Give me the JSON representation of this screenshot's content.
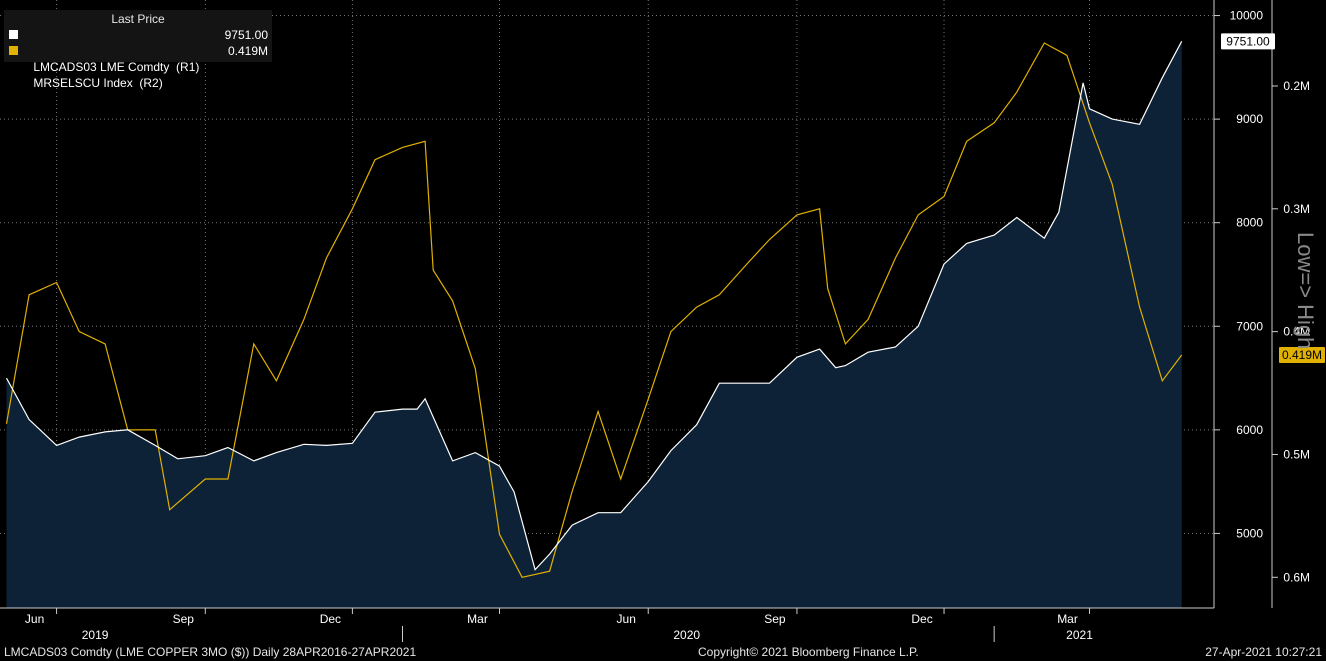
{
  "legend": {
    "header": "Last Price",
    "series": [
      {
        "label": "LMCADS03 LME Comdty  (R1)",
        "value": "9751.00",
        "color": "#ffffff"
      },
      {
        "label": "MRSELSCU Index  (R2)",
        "value": "0.419M",
        "color": "#e0b100"
      }
    ]
  },
  "footer": {
    "left": "LMCADS03 Comdty (LME COPPER    3MO ($))  Daily 28APR2016-27APR2021",
    "center": "Copyright© 2021 Bloomberg Finance L.P.",
    "right": "27-Apr-2021 10:27:21"
  },
  "side_label": "Low=> High",
  "chart_data": {
    "type": "line",
    "x_month_labels": [
      "Jun",
      "Sep",
      "Dec",
      "Mar",
      "Jun",
      "Sep",
      "Dec",
      "Mar"
    ],
    "x_month_dates": [
      "2019-06-01",
      "2019-09-01",
      "2019-12-01",
      "2020-03-01",
      "2020-06-01",
      "2020-09-01",
      "2020-12-01",
      "2021-03-01"
    ],
    "x_year_labels": [
      "2019",
      "2020",
      "2021"
    ],
    "x_year_dates": [
      "2019-07-01",
      "2020-07-01",
      "2021-03-01"
    ],
    "xlim": [
      "2019-04-27",
      "2021-05-17"
    ],
    "r1_axis": {
      "ticks": [
        5000,
        6000,
        7000,
        8000,
        9000,
        10000
      ],
      "ylim": [
        4280,
        10150
      ]
    },
    "r2_axis": {
      "ticks": [
        "0.2M",
        "0.3M",
        "0.4M",
        "0.5M",
        "0.6M"
      ],
      "tick_values": [
        0.2,
        0.3,
        0.4,
        0.5,
        0.6
      ],
      "ylim": [
        0.13,
        0.625
      ],
      "inverted": true
    },
    "last_value_labels": {
      "r1": "9751.00",
      "r2": "0.419M"
    },
    "series": [
      {
        "name": "LMCADS03 LME Comdty",
        "axis": "R1",
        "color": "#ffffff",
        "fill": "#0d2137",
        "points": [
          [
            "2019-05-01",
            6500
          ],
          [
            "2019-05-15",
            6100
          ],
          [
            "2019-06-01",
            5850
          ],
          [
            "2019-06-15",
            5930
          ],
          [
            "2019-07-01",
            5980
          ],
          [
            "2019-07-15",
            6000
          ],
          [
            "2019-08-01",
            5850
          ],
          [
            "2019-08-15",
            5720
          ],
          [
            "2019-09-01",
            5750
          ],
          [
            "2019-09-15",
            5830
          ],
          [
            "2019-10-01",
            5700
          ],
          [
            "2019-10-15",
            5780
          ],
          [
            "2019-11-01",
            5860
          ],
          [
            "2019-11-15",
            5850
          ],
          [
            "2019-12-01",
            5870
          ],
          [
            "2019-12-15",
            6170
          ],
          [
            "2020-01-01",
            6200
          ],
          [
            "2020-01-10",
            6200
          ],
          [
            "2020-01-15",
            6300
          ],
          [
            "2020-02-01",
            5700
          ],
          [
            "2020-02-15",
            5780
          ],
          [
            "2020-03-01",
            5650
          ],
          [
            "2020-03-10",
            5400
          ],
          [
            "2020-03-23",
            4650
          ],
          [
            "2020-04-01",
            4800
          ],
          [
            "2020-04-15",
            5080
          ],
          [
            "2020-05-01",
            5200
          ],
          [
            "2020-05-15",
            5200
          ],
          [
            "2020-06-01",
            5500
          ],
          [
            "2020-06-15",
            5800
          ],
          [
            "2020-07-01",
            6050
          ],
          [
            "2020-07-15",
            6450
          ],
          [
            "2020-08-01",
            6450
          ],
          [
            "2020-08-15",
            6450
          ],
          [
            "2020-09-01",
            6700
          ],
          [
            "2020-09-15",
            6780
          ],
          [
            "2020-09-25",
            6600
          ],
          [
            "2020-10-01",
            6620
          ],
          [
            "2020-10-15",
            6750
          ],
          [
            "2020-11-01",
            6800
          ],
          [
            "2020-11-15",
            7000
          ],
          [
            "2020-12-01",
            7600
          ],
          [
            "2020-12-15",
            7800
          ],
          [
            "2021-01-01",
            7880
          ],
          [
            "2021-01-15",
            8050
          ],
          [
            "2021-02-01",
            7850
          ],
          [
            "2021-02-10",
            8100
          ],
          [
            "2021-02-25",
            9350
          ],
          [
            "2021-03-01",
            9100
          ],
          [
            "2021-03-15",
            9000
          ],
          [
            "2021-04-01",
            8950
          ],
          [
            "2021-04-15",
            9400
          ],
          [
            "2021-04-27",
            9751
          ]
        ]
      },
      {
        "name": "MRSELSCU Index",
        "axis": "R2",
        "color": "#e0b100",
        "points": [
          [
            "2019-05-01",
            0.475
          ],
          [
            "2019-05-15",
            0.37
          ],
          [
            "2019-06-01",
            0.36
          ],
          [
            "2019-06-15",
            0.4
          ],
          [
            "2019-07-01",
            0.41
          ],
          [
            "2019-07-15",
            0.48
          ],
          [
            "2019-08-01",
            0.48
          ],
          [
            "2019-08-10",
            0.545
          ],
          [
            "2019-09-01",
            0.52
          ],
          [
            "2019-09-15",
            0.52
          ],
          [
            "2019-10-01",
            0.41
          ],
          [
            "2019-10-15",
            0.44
          ],
          [
            "2019-11-01",
            0.39
          ],
          [
            "2019-11-15",
            0.34
          ],
          [
            "2019-12-01",
            0.3
          ],
          [
            "2019-12-15",
            0.26
          ],
          [
            "2020-01-01",
            0.25
          ],
          [
            "2020-01-15",
            0.245
          ],
          [
            "2020-01-20",
            0.35
          ],
          [
            "2020-02-01",
            0.375
          ],
          [
            "2020-02-15",
            0.43
          ],
          [
            "2020-03-01",
            0.565
          ],
          [
            "2020-03-15",
            0.6
          ],
          [
            "2020-04-01",
            0.595
          ],
          [
            "2020-04-15",
            0.53
          ],
          [
            "2020-05-01",
            0.465
          ],
          [
            "2020-05-15",
            0.52
          ],
          [
            "2020-06-01",
            0.455
          ],
          [
            "2020-06-15",
            0.4
          ],
          [
            "2020-07-01",
            0.38
          ],
          [
            "2020-07-15",
            0.37
          ],
          [
            "2020-08-01",
            0.345
          ],
          [
            "2020-08-15",
            0.325
          ],
          [
            "2020-09-01",
            0.305
          ],
          [
            "2020-09-15",
            0.3
          ],
          [
            "2020-09-20",
            0.365
          ],
          [
            "2020-10-01",
            0.41
          ],
          [
            "2020-10-15",
            0.39
          ],
          [
            "2020-11-01",
            0.34
          ],
          [
            "2020-11-15",
            0.305
          ],
          [
            "2020-12-01",
            0.29
          ],
          [
            "2020-12-15",
            0.245
          ],
          [
            "2021-01-01",
            0.23
          ],
          [
            "2021-01-15",
            0.205
          ],
          [
            "2021-02-01",
            0.165
          ],
          [
            "2021-02-15",
            0.175
          ],
          [
            "2021-03-01",
            0.23
          ],
          [
            "2021-03-15",
            0.28
          ],
          [
            "2021-04-01",
            0.38
          ],
          [
            "2021-04-15",
            0.44
          ],
          [
            "2021-04-27",
            0.419
          ]
        ]
      }
    ]
  }
}
